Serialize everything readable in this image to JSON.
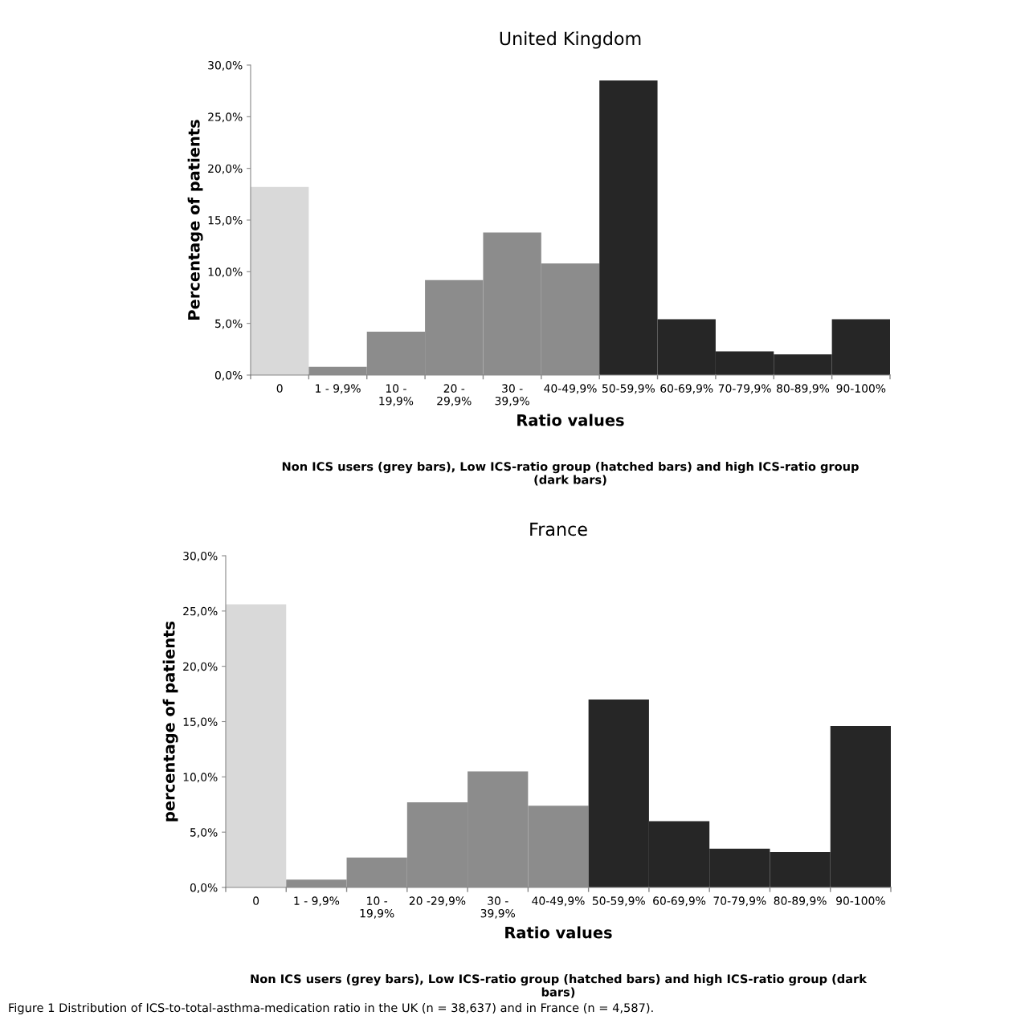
{
  "chart_data": [
    {
      "type": "bar",
      "title": "United Kingdom",
      "xlabel": "Ratio values",
      "ylabel": "Percentage of patients",
      "categories": [
        "0",
        "1 - 9,9%",
        "10 -\n19,9%",
        "20 -\n29,9%",
        "30 -\n39,9%",
        "40-49,9%",
        "50-59,9%",
        "60-69,9%",
        "70-79,9%",
        "80-89,9%",
        "90-100%"
      ],
      "values": [
        18.2,
        0.8,
        4.2,
        9.2,
        13.8,
        10.8,
        28.5,
        5.4,
        2.3,
        2.0,
        5.4
      ],
      "colors": [
        "#d9d9d9",
        "#8c8c8c",
        "#8c8c8c",
        "#8c8c8c",
        "#8c8c8c",
        "#8c8c8c",
        "#262626",
        "#262626",
        "#262626",
        "#262626",
        "#262626"
      ],
      "ylim": [
        0,
        30
      ],
      "yticks": [
        {
          "value": 0,
          "label": "0,0%"
        },
        {
          "value": 5,
          "label": "5,0%"
        },
        {
          "value": 10,
          "label": "10,0%"
        },
        {
          "value": 15,
          "label": "15,0%"
        },
        {
          "value": 20,
          "label": "20,0%"
        },
        {
          "value": 25,
          "label": "25,0%"
        },
        {
          "value": 30,
          "label": "30,0%"
        }
      ],
      "grid": false,
      "legend": false,
      "annotations": [
        "Non ICS users (grey bars), Low ICS-ratio group (hatched bars) and high ICS-ratio group\n(dark bars)"
      ]
    },
    {
      "type": "bar",
      "title": "France",
      "xlabel": "Ratio values",
      "ylabel": "percentage of patients",
      "categories": [
        "0",
        "1 - 9,9%",
        "10 -\n19,9%",
        "20 -29,9%",
        "30 -\n39,9%",
        "40-49,9%",
        "50-59,9%",
        "60-69,9%",
        "70-79,9%",
        "80-89,9%",
        "90-100%"
      ],
      "values": [
        25.6,
        0.7,
        2.7,
        7.7,
        10.5,
        7.4,
        17.0,
        6.0,
        3.5,
        3.2,
        14.6
      ],
      "colors": [
        "#d9d9d9",
        "#8c8c8c",
        "#8c8c8c",
        "#8c8c8c",
        "#8c8c8c",
        "#8c8c8c",
        "#262626",
        "#262626",
        "#262626",
        "#262626",
        "#262626"
      ],
      "ylim": [
        0,
        30
      ],
      "yticks": [
        {
          "value": 0,
          "label": "0,0%"
        },
        {
          "value": 5,
          "label": "5,0%"
        },
        {
          "value": 10,
          "label": "10,0%"
        },
        {
          "value": 15,
          "label": "15,0%"
        },
        {
          "value": 20,
          "label": "20,0%"
        },
        {
          "value": 25,
          "label": "25,0%"
        },
        {
          "value": 30,
          "label": "30,0%"
        }
      ],
      "grid": false,
      "legend": false,
      "annotations": [
        "Non ICS users (grey bars), Low ICS-ratio group (hatched bars) and high ICS-ratio group (dark\nbars)",
        "Figure 1 Distribution of ICS-to-total-asthma-medication ratio in the UK (n = 38,637) and in France (n = 4,587)."
      ]
    }
  ]
}
